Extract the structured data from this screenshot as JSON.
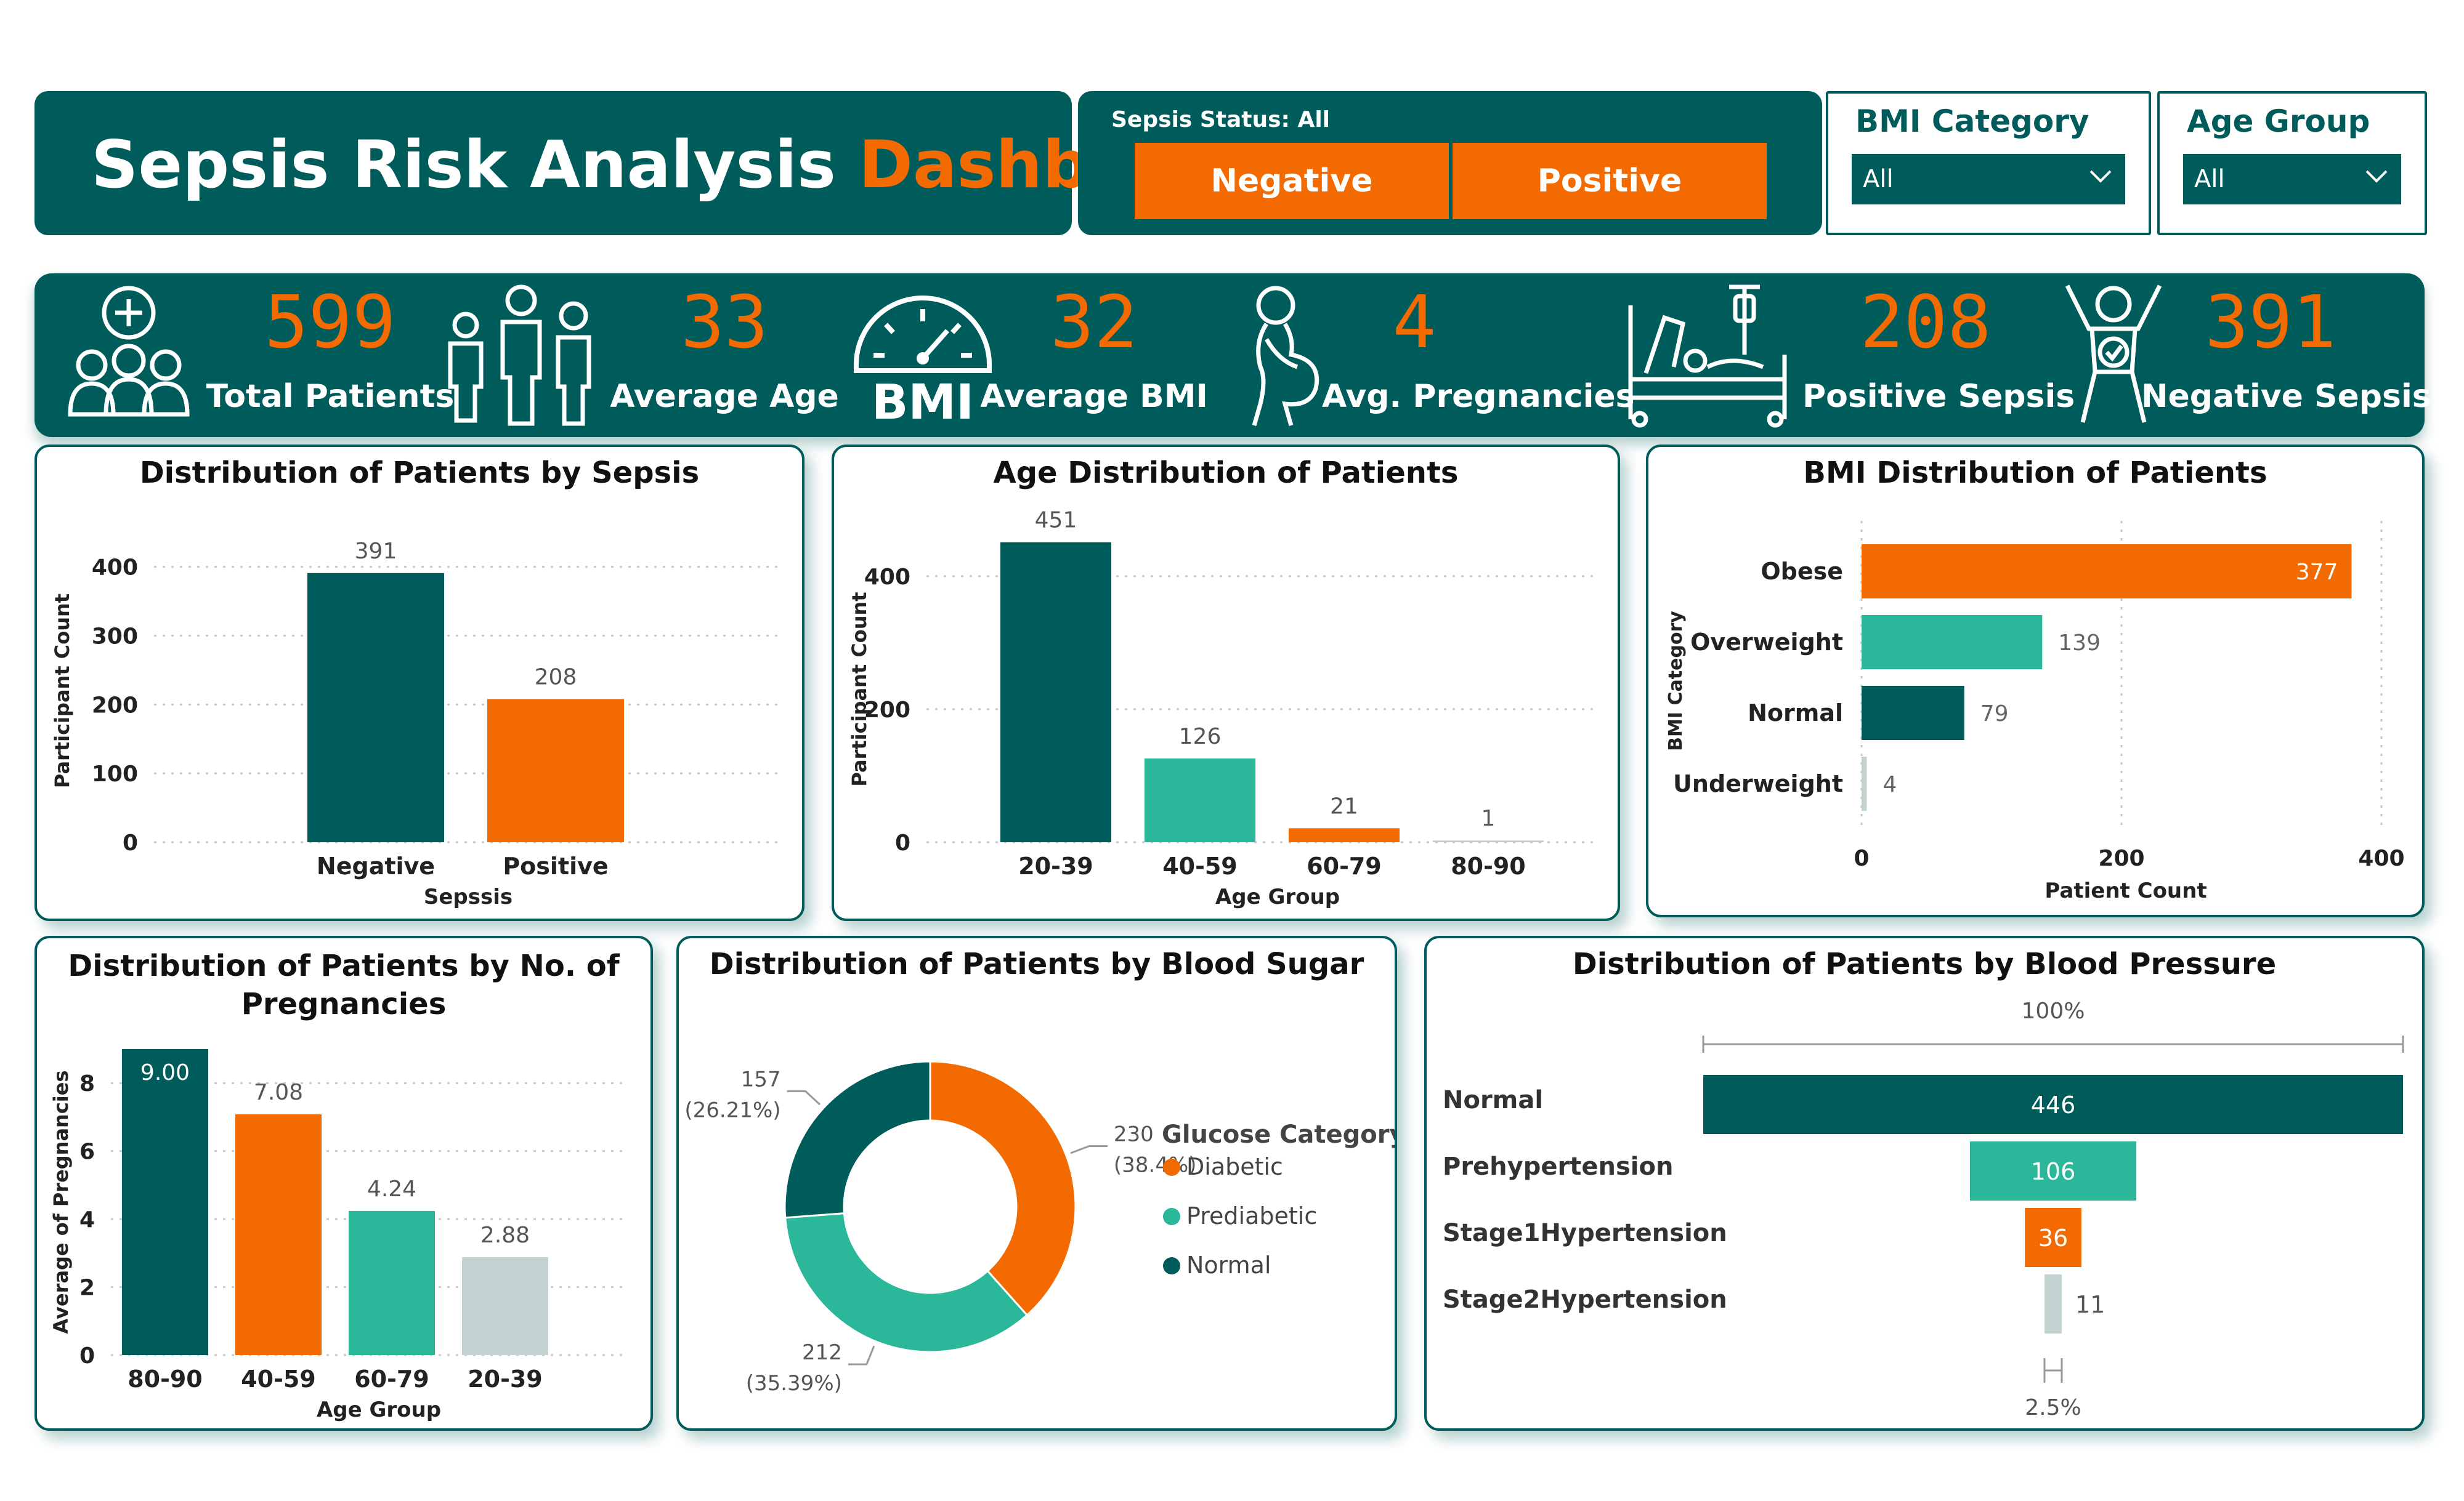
{
  "header": {
    "title_main": "Sepsis Risk Analysis",
    "title_accent": "Dashboard",
    "sepsis_filter_label": "Sepsis Status: All",
    "sepsis_options": [
      "Negative",
      "Positive"
    ],
    "bmi_slicer": {
      "label": "BMI Category",
      "value": "All"
    },
    "age_slicer": {
      "label": "Age Group",
      "value": "All"
    }
  },
  "kpis": [
    {
      "value": "599",
      "label": "Total Patients",
      "icon": "patients-group-icon"
    },
    {
      "value": "33",
      "label": "Average Age",
      "icon": "family-icon"
    },
    {
      "value": "32",
      "label": "Average BMI",
      "icon": "bmi-gauge-icon",
      "icon_text": "BMI"
    },
    {
      "value": "4",
      "label": "Avg. Pregnancies",
      "icon": "pregnant-woman-icon"
    },
    {
      "value": "208",
      "label": "Positive Sepsis",
      "icon": "hospital-bed-icon"
    },
    {
      "value": "391",
      "label": "Negative Sepsis",
      "icon": "healthy-person-icon"
    }
  ],
  "colors": {
    "teal": "#005b5b",
    "orange": "#f26a00",
    "mint": "#2bb89a",
    "grey": "#c2d3d1"
  },
  "chart_data": [
    {
      "id": "sepsis",
      "type": "bar",
      "title": "Distribution of Patients by Sepsis",
      "categories": [
        "Negative",
        "Positive"
      ],
      "values": [
        391,
        208
      ],
      "colors": [
        "#005b5b",
        "#f26a00"
      ],
      "xlabel": "Sepssis",
      "ylabel": "Participant Count",
      "ylim": [
        0,
        440
      ],
      "yticks": [
        0,
        100,
        200,
        300,
        400
      ],
      "grid": true
    },
    {
      "id": "age",
      "type": "bar",
      "title": "Age Distribution of Patients",
      "categories": [
        "20-39",
        "40-59",
        "60-79",
        "80-90"
      ],
      "values": [
        451,
        126,
        21,
        1
      ],
      "colors": [
        "#005b5b",
        "#2bb89a",
        "#f26a00",
        "#c2d3d1"
      ],
      "xlabel": "Age Group",
      "ylabel": "Participant Count",
      "ylim": [
        0,
        460
      ],
      "yticks": [
        0,
        200,
        400
      ],
      "grid": true
    },
    {
      "id": "bmi",
      "type": "bar",
      "orientation": "horizontal",
      "title": "BMI Distribution of Patients",
      "categories": [
        "Obese",
        "Overweight",
        "Normal",
        "Underweight"
      ],
      "values": [
        377,
        139,
        79,
        4
      ],
      "colors": [
        "#f26a00",
        "#2bb89a",
        "#005b5b",
        "#c2d3d1"
      ],
      "xlabel": "Patient Count",
      "ylabel": "BMI Category",
      "xlim": [
        0,
        400
      ],
      "xticks": [
        0,
        200,
        400
      ],
      "grid": true
    },
    {
      "id": "preg",
      "type": "bar",
      "title": "Distribution of Patients by No. of Pregnancies",
      "categories": [
        "80-90",
        "40-59",
        "60-79",
        "20-39"
      ],
      "values": [
        9.0,
        7.08,
        4.24,
        2.88
      ],
      "labels": [
        "9.00",
        "7.08",
        "4.24",
        "2.88"
      ],
      "colors": [
        "#005b5b",
        "#f26a00",
        "#2bb89a",
        "#c2d3d1"
      ],
      "xlabel": "Age Group",
      "ylabel": "Average of Pregnancies",
      "ylim": [
        0,
        9
      ],
      "yticks": [
        0,
        2,
        4,
        6,
        8
      ],
      "grid": true
    },
    {
      "id": "sugar",
      "type": "pie",
      "donut": true,
      "title": "Distribution of Patients by Blood Sugar",
      "legend_title": "Glucose Category",
      "legend_position": "right",
      "slices": [
        {
          "name": "Diabetic",
          "value": 230,
          "label": "230",
          "pct": "(38.4%)",
          "color": "#f26a00"
        },
        {
          "name": "Prediabetic",
          "value": 212,
          "label": "212",
          "pct": "(35.39%)",
          "color": "#2bb89a"
        },
        {
          "name": "Normal",
          "value": 157,
          "label": "157",
          "pct": "(26.21%)",
          "color": "#005b5b"
        }
      ]
    },
    {
      "id": "bp",
      "type": "funnel",
      "title": "Distribution of Patients by Blood Pressure",
      "top_label": "100%",
      "bottom_label": "2.5%",
      "categories": [
        "Normal",
        "Prehypertension",
        "Stage1Hypertension",
        "Stage2Hypertension"
      ],
      "values": [
        446,
        106,
        36,
        11
      ],
      "colors": [
        "#005b5b",
        "#2bb89a",
        "#f26a00",
        "#c2d3d1"
      ]
    }
  ]
}
